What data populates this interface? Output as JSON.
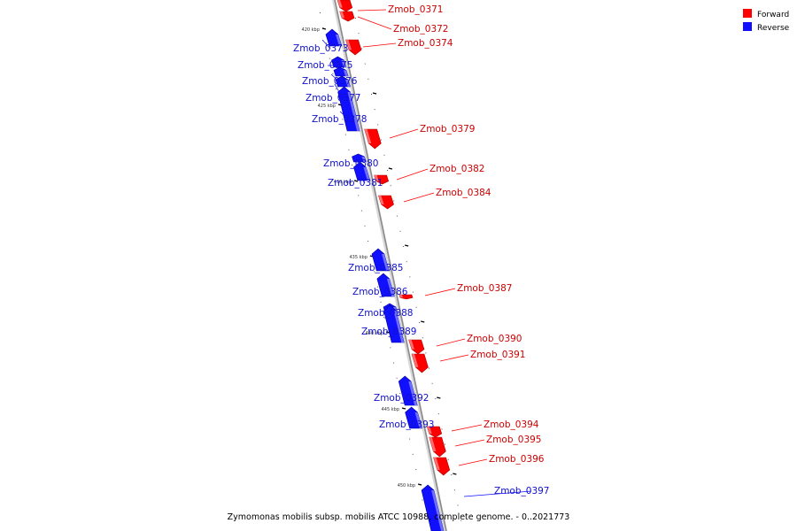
{
  "legend": [
    {
      "key": "forward",
      "label": "Forward",
      "color": "#ff0000"
    },
    {
      "key": "reverse",
      "label": "Reverse",
      "color": "#1010ff"
    }
  ],
  "colors": {
    "forward": "#ff0000",
    "forward_shade": "#aa0000",
    "forward_light": "#ff8080",
    "reverse": "#1010ff",
    "reverse_shade": "#00009a",
    "reverse_light": "#8080ff",
    "backbone": "#8a8a8a",
    "backbone_light": "#d9d9d9"
  },
  "caption": "Zymomonas mobilis subsp. mobilis ATCC 10988, complete genome. - 0..2021773",
  "ticks": [
    {
      "kbp": 420,
      "label": "420 kbp"
    },
    {
      "kbp": 425,
      "label": "425 kbp"
    },
    {
      "kbp": 430,
      "label": "430 kbp"
    },
    {
      "kbp": 435,
      "label": "435 kbp"
    },
    {
      "kbp": 440,
      "label": "440 kbp"
    },
    {
      "kbp": 445,
      "label": "445 kbp"
    },
    {
      "kbp": 450,
      "label": "450 kbp"
    }
  ],
  "genes": [
    {
      "id": "Zmob_0371",
      "strand": "forward"
    },
    {
      "id": "Zmob_0372",
      "strand": "forward"
    },
    {
      "id": "Zmob_0373",
      "strand": "reverse"
    },
    {
      "id": "Zmob_0374",
      "strand": "forward"
    },
    {
      "id": "Zmob_0375",
      "strand": "reverse"
    },
    {
      "id": "Zmob_0376",
      "strand": "reverse"
    },
    {
      "id": "Zmob_0377",
      "strand": "reverse"
    },
    {
      "id": "Zmob_0378",
      "strand": "reverse"
    },
    {
      "id": "Zmob_0379",
      "strand": "forward"
    },
    {
      "id": "Zmob_0380",
      "strand": "reverse"
    },
    {
      "id": "Zmob_0381",
      "strand": "reverse"
    },
    {
      "id": "Zmob_0382",
      "strand": "forward"
    },
    {
      "id": "Zmob_0384",
      "strand": "forward"
    },
    {
      "id": "Zmob_0385",
      "strand": "reverse"
    },
    {
      "id": "Zmob_0386",
      "strand": "reverse"
    },
    {
      "id": "Zmob_0387",
      "strand": "forward"
    },
    {
      "id": "Zmob_0388",
      "strand": "reverse"
    },
    {
      "id": "Zmob_0389",
      "strand": "reverse"
    },
    {
      "id": "Zmob_0390",
      "strand": "forward"
    },
    {
      "id": "Zmob_0391",
      "strand": "forward"
    },
    {
      "id": "Zmob_0392",
      "strand": "reverse"
    },
    {
      "id": "Zmob_0393",
      "strand": "reverse"
    },
    {
      "id": "Zmob_0394",
      "strand": "forward"
    },
    {
      "id": "Zmob_0395",
      "strand": "forward"
    },
    {
      "id": "Zmob_0396",
      "strand": "forward"
    },
    {
      "id": "Zmob_0397",
      "strand": "reverse"
    }
  ]
}
